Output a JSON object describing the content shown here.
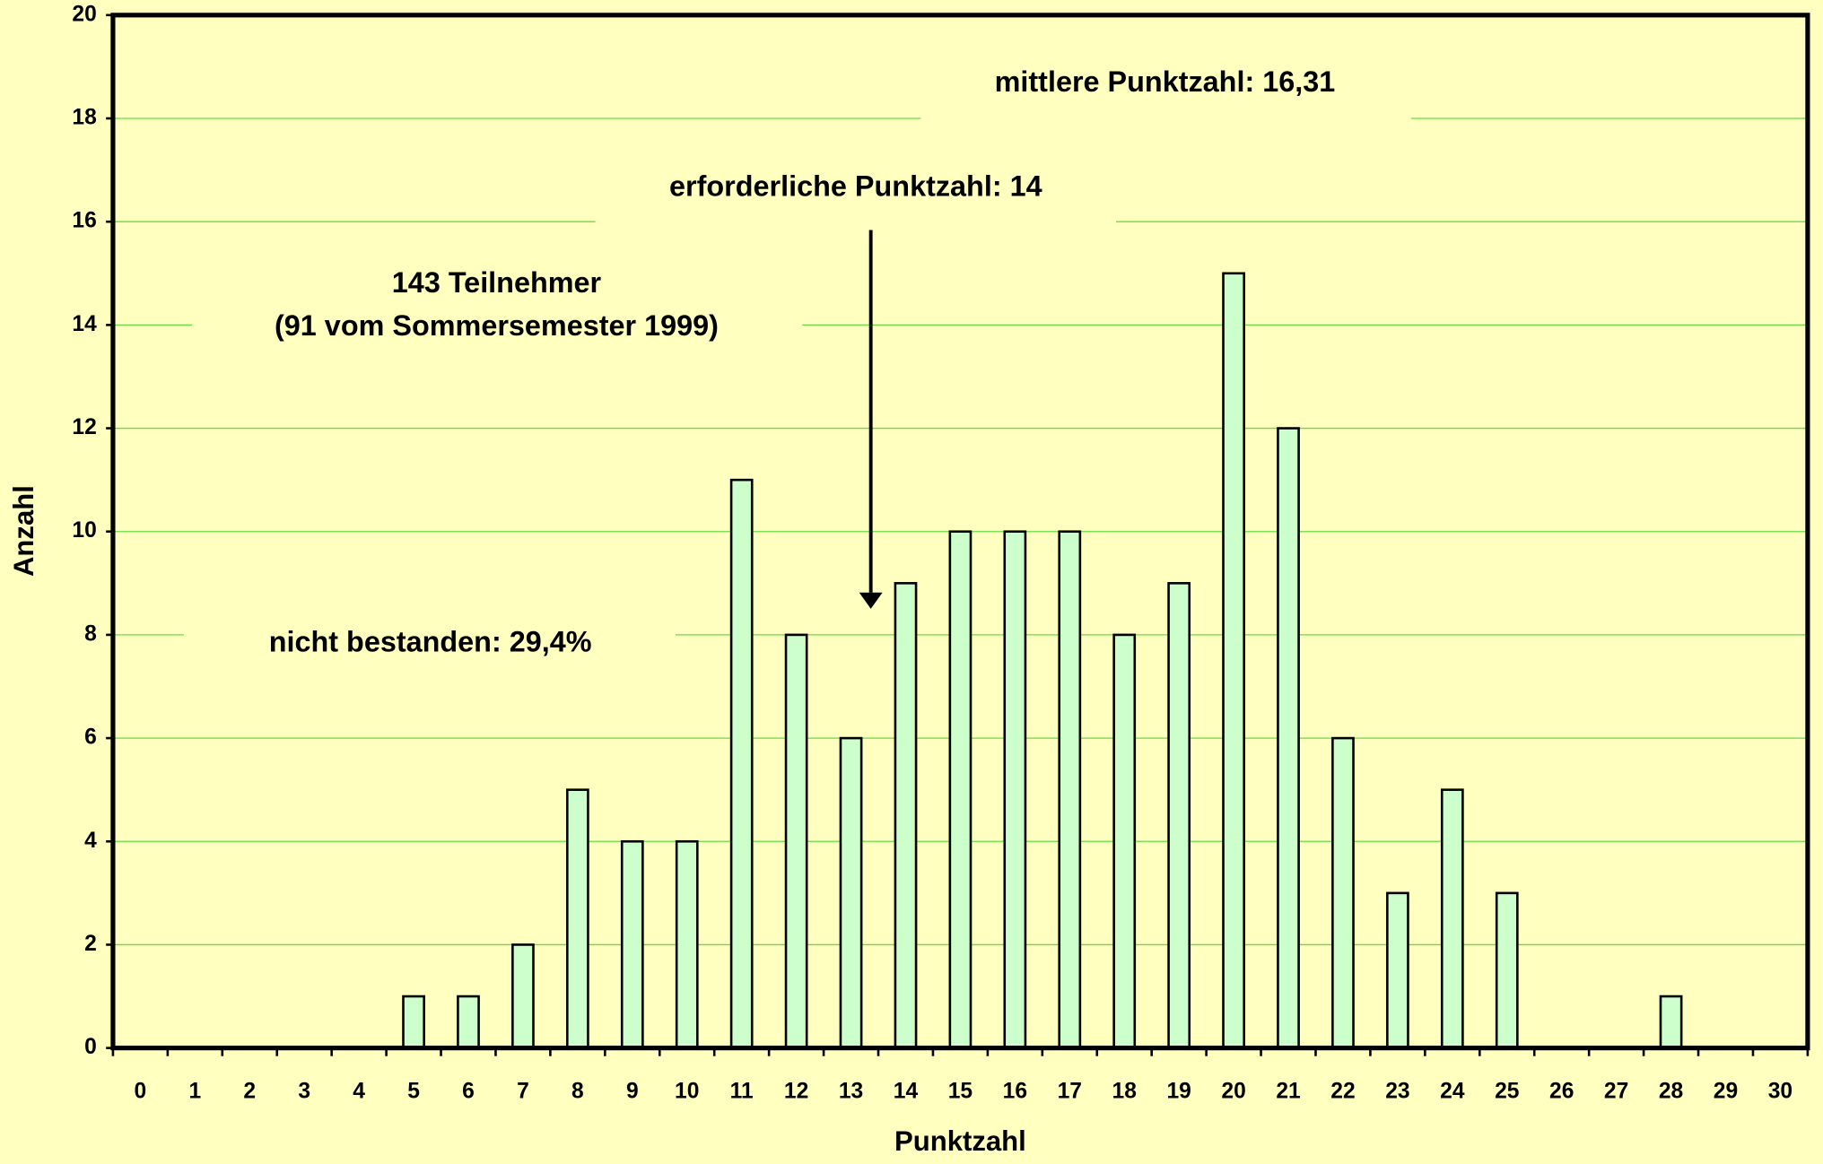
{
  "chart_data": {
    "type": "bar",
    "x_label": "Punktzahl",
    "y_label": "Anzahl",
    "categories": [
      "0",
      "1",
      "2",
      "3",
      "4",
      "5",
      "6",
      "7",
      "8",
      "9",
      "10",
      "11",
      "12",
      "13",
      "14",
      "15",
      "16",
      "17",
      "18",
      "19",
      "20",
      "21",
      "22",
      "23",
      "24",
      "25",
      "26",
      "27",
      "28",
      "29",
      "30"
    ],
    "values": [
      0,
      0,
      0,
      0,
      0,
      1,
      1,
      2,
      5,
      4,
      4,
      11,
      8,
      6,
      9,
      10,
      10,
      10,
      8,
      9,
      15,
      12,
      6,
      3,
      5,
      3,
      0,
      0,
      1,
      0,
      0
    ],
    "color": "#ccffcc",
    "ylim": [
      0,
      20
    ],
    "yticks": [
      0,
      2,
      4,
      6,
      8,
      10,
      12,
      14,
      16,
      18,
      20
    ],
    "grid": true,
    "annotations": [
      "mittlere Punktzahl: 16,31",
      "erforderliche Punktzahl: 14",
      "143 Teilnehmer",
      "(91 vom Sommersemester 1999)",
      "nicht bestanden: 29,4%"
    ]
  }
}
